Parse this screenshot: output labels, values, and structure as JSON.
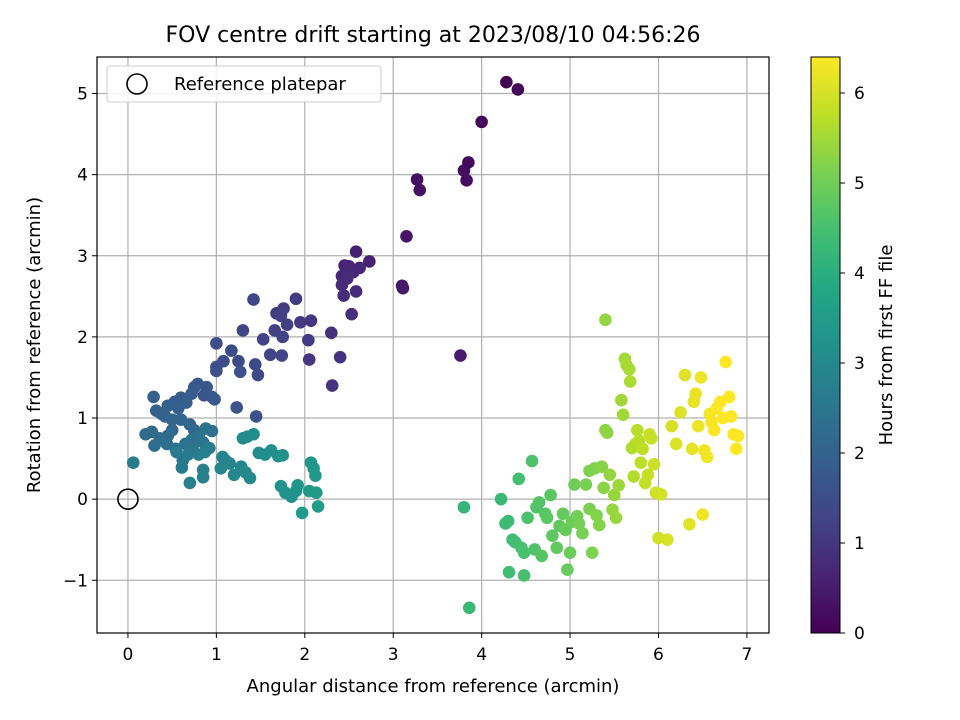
{
  "chart_data": {
    "type": "scatter",
    "title": "FOV centre drift starting at 2023/08/10 04:56:26",
    "xlabel": "Angular distance from reference (arcmin)",
    "ylabel": "Rotation from reference (arcmin)",
    "xlim": [
      -0.35,
      7.25
    ],
    "ylim": [
      -1.65,
      5.45
    ],
    "xticks": [
      0,
      1,
      2,
      3,
      4,
      5,
      6,
      7
    ],
    "yticks": [
      -1,
      0,
      1,
      2,
      3,
      4,
      5
    ],
    "ytick_labels": [
      "−1",
      "0",
      "1",
      "2",
      "3",
      "4",
      "5"
    ],
    "grid": true,
    "legend": {
      "position": "top-left",
      "label": "Reference platepar",
      "marker": "open-circle"
    },
    "reference_point": {
      "x": 0,
      "y": 0
    },
    "colorbar": {
      "label": "Hours from first FF file",
      "colormap": "viridis",
      "range": [
        0,
        6.4
      ],
      "ticks": [
        0,
        1,
        2,
        3,
        4,
        5,
        6
      ]
    },
    "series": [
      {
        "points": [
          [
            4.28,
            5.14,
            0.0
          ],
          [
            4.41,
            5.05,
            0.05
          ],
          [
            4.0,
            4.65,
            0.1
          ],
          [
            3.85,
            4.15,
            0.15
          ],
          [
            3.8,
            4.05,
            0.2
          ],
          [
            3.83,
            3.93,
            0.22
          ],
          [
            3.27,
            3.94,
            0.28
          ],
          [
            3.3,
            3.81,
            0.32
          ],
          [
            3.1,
            2.63,
            0.4
          ],
          [
            3.11,
            2.6,
            0.43
          ],
          [
            3.15,
            3.24,
            0.37
          ],
          [
            3.76,
            1.77,
            0.5
          ],
          [
            2.58,
            3.05,
            0.55
          ],
          [
            2.73,
            2.93,
            0.58
          ],
          [
            2.45,
            2.88,
            0.62
          ],
          [
            2.5,
            2.87,
            0.65
          ],
          [
            2.62,
            2.85,
            0.68
          ],
          [
            2.55,
            2.8,
            0.7
          ],
          [
            2.42,
            2.75,
            0.72
          ],
          [
            2.48,
            2.72,
            0.75
          ],
          [
            2.42,
            2.64,
            0.78
          ],
          [
            2.58,
            2.56,
            0.8
          ],
          [
            2.44,
            2.51,
            0.83
          ],
          [
            2.53,
            2.28,
            0.86
          ],
          [
            2.3,
            2.05,
            0.9
          ],
          [
            2.4,
            1.75,
            0.93
          ],
          [
            2.31,
            1.4,
            0.96
          ],
          [
            2.05,
            1.72,
            1.0
          ],
          [
            2.07,
            2.2,
            1.02
          ],
          [
            1.95,
            2.18,
            1.05
          ],
          [
            2.04,
            1.96,
            1.07
          ],
          [
            1.9,
            2.47,
            1.1
          ],
          [
            1.76,
            2.35,
            1.12
          ],
          [
            1.68,
            2.29,
            1.15
          ],
          [
            1.73,
            2.26,
            1.17
          ],
          [
            1.8,
            2.15,
            1.2
          ],
          [
            1.66,
            2.08,
            1.22
          ],
          [
            1.75,
            2.0,
            1.25
          ],
          [
            1.53,
            1.97,
            1.27
          ],
          [
            1.61,
            1.78,
            1.3
          ],
          [
            1.74,
            1.77,
            1.32
          ],
          [
            1.3,
            2.08,
            1.35
          ],
          [
            1.42,
            2.46,
            1.37
          ],
          [
            1.44,
            1.66,
            1.4
          ],
          [
            1.47,
            1.53,
            1.42
          ],
          [
            1.25,
            1.7,
            1.45
          ],
          [
            1.17,
            1.83,
            1.47
          ],
          [
            1.08,
            1.7,
            1.5
          ],
          [
            1.0,
            1.92,
            1.52
          ],
          [
            1.0,
            1.63,
            1.55
          ],
          [
            1.0,
            1.58,
            1.57
          ],
          [
            1.27,
            1.57,
            1.6
          ],
          [
            1.45,
            1.02,
            1.62
          ],
          [
            1.23,
            1.13,
            1.65
          ],
          [
            0.89,
            1.38,
            1.68
          ],
          [
            0.86,
            1.28,
            1.7
          ],
          [
            0.95,
            1.26,
            1.72
          ],
          [
            0.98,
            1.23,
            1.75
          ],
          [
            0.79,
            1.42,
            1.77
          ],
          [
            0.75,
            1.38,
            1.8
          ],
          [
            0.72,
            1.3,
            1.82
          ],
          [
            0.6,
            1.25,
            1.85
          ],
          [
            0.53,
            1.2,
            1.87
          ],
          [
            0.66,
            1.19,
            1.9
          ],
          [
            0.57,
            1.12,
            1.92
          ],
          [
            0.45,
            1.15,
            1.95
          ],
          [
            0.29,
            1.26,
            1.97
          ],
          [
            0.32,
            1.09,
            2.0
          ],
          [
            0.38,
            1.05,
            2.02
          ],
          [
            0.42,
            1.02,
            2.05
          ],
          [
            0.5,
            0.98,
            2.07
          ],
          [
            0.6,
            0.98,
            2.1
          ],
          [
            0.7,
            0.92,
            2.12
          ],
          [
            0.75,
            0.85,
            2.15
          ],
          [
            0.5,
            0.85,
            2.17
          ],
          [
            0.27,
            0.83,
            2.2
          ],
          [
            0.2,
            0.8,
            2.22
          ],
          [
            0.45,
            0.78,
            2.25
          ],
          [
            0.36,
            0.75,
            2.27
          ],
          [
            0.3,
            0.66,
            2.3
          ],
          [
            0.44,
            0.68,
            2.32
          ],
          [
            0.54,
            0.62,
            2.35
          ],
          [
            0.65,
            0.68,
            2.37
          ],
          [
            0.72,
            0.73,
            2.4
          ],
          [
            0.8,
            0.78,
            2.42
          ],
          [
            0.88,
            0.87,
            2.45
          ],
          [
            0.95,
            0.84,
            2.47
          ],
          [
            0.85,
            0.7,
            2.5
          ],
          [
            0.73,
            0.63,
            2.52
          ],
          [
            0.68,
            0.55,
            2.55
          ],
          [
            0.62,
            0.48,
            2.57
          ],
          [
            0.55,
            0.58,
            2.6
          ],
          [
            0.61,
            0.39,
            2.62
          ],
          [
            0.06,
            0.45,
            2.65
          ],
          [
            0.92,
            0.63,
            2.67
          ],
          [
            0.87,
            0.58,
            2.7
          ],
          [
            0.8,
            0.55,
            2.72
          ],
          [
            0.85,
            0.36,
            2.75
          ],
          [
            0.85,
            0.27,
            2.77
          ],
          [
            0.7,
            0.2,
            2.8
          ],
          [
            1.07,
            0.52,
            2.82
          ],
          [
            1.1,
            0.48,
            2.85
          ],
          [
            1.15,
            0.44,
            2.87
          ],
          [
            1.05,
            0.38,
            2.9
          ],
          [
            1.2,
            0.3,
            2.92
          ],
          [
            1.28,
            0.4,
            2.95
          ],
          [
            1.33,
            0.33,
            2.97
          ],
          [
            1.38,
            0.26,
            3.0
          ],
          [
            1.3,
            0.75,
            3.02
          ],
          [
            1.35,
            0.77,
            3.05
          ],
          [
            1.42,
            0.8,
            3.07
          ],
          [
            1.48,
            0.57,
            3.1
          ],
          [
            1.55,
            0.55,
            3.12
          ],
          [
            1.62,
            0.6,
            3.15
          ],
          [
            1.7,
            0.53,
            3.17
          ],
          [
            1.75,
            0.54,
            3.2
          ],
          [
            1.73,
            0.16,
            3.22
          ],
          [
            1.78,
            0.08,
            3.25
          ],
          [
            1.85,
            0.03,
            3.27
          ],
          [
            1.9,
            0.1,
            3.3
          ],
          [
            1.92,
            0.17,
            3.32
          ],
          [
            2.07,
            0.45,
            3.35
          ],
          [
            2.1,
            0.38,
            3.37
          ],
          [
            2.12,
            0.29,
            3.4
          ],
          [
            2.05,
            0.1,
            3.42
          ],
          [
            2.13,
            0.08,
            3.45
          ],
          [
            1.97,
            -0.17,
            3.47
          ],
          [
            2.15,
            -0.09,
            3.5
          ],
          [
            3.8,
            -0.1,
            4.2
          ],
          [
            3.86,
            -1.34,
            4.25
          ],
          [
            4.22,
            0.0,
            4.3
          ],
          [
            4.27,
            -0.3,
            4.35
          ],
          [
            4.3,
            -0.27,
            4.37
          ],
          [
            4.31,
            -0.9,
            4.4
          ],
          [
            4.35,
            -0.5,
            4.42
          ],
          [
            4.38,
            -0.53,
            4.45
          ],
          [
            4.42,
            0.25,
            4.47
          ],
          [
            4.45,
            -0.6,
            4.5
          ],
          [
            4.48,
            -0.94,
            4.52
          ],
          [
            4.48,
            -0.66,
            4.55
          ],
          [
            4.52,
            -0.23,
            4.57
          ],
          [
            4.57,
            0.47,
            4.6
          ],
          [
            4.6,
            -0.62,
            4.62
          ],
          [
            4.62,
            -0.1,
            4.65
          ],
          [
            4.65,
            -0.04,
            4.67
          ],
          [
            4.68,
            -0.7,
            4.7
          ],
          [
            4.72,
            -0.18,
            4.72
          ],
          [
            4.74,
            -0.23,
            4.75
          ],
          [
            4.78,
            0.05,
            4.77
          ],
          [
            4.8,
            -0.45,
            4.8
          ],
          [
            4.85,
            -0.6,
            4.82
          ],
          [
            4.88,
            -0.33,
            4.85
          ],
          [
            4.92,
            -0.18,
            4.87
          ],
          [
            4.95,
            -0.38,
            4.9
          ],
          [
            4.97,
            -0.87,
            4.92
          ],
          [
            5.0,
            -0.66,
            4.95
          ],
          [
            5.02,
            -0.28,
            4.97
          ],
          [
            5.05,
            0.18,
            5.0
          ],
          [
            5.08,
            -0.21,
            5.02
          ],
          [
            5.1,
            -0.3,
            5.05
          ],
          [
            5.14,
            -0.42,
            5.07
          ],
          [
            5.18,
            0.18,
            5.1
          ],
          [
            5.22,
            -0.12,
            5.12
          ],
          [
            5.25,
            -0.66,
            5.15
          ],
          [
            5.28,
            0.38,
            5.17
          ],
          [
            5.3,
            -0.2,
            5.2
          ],
          [
            5.33,
            -0.32,
            5.22
          ],
          [
            5.36,
            0.4,
            5.25
          ],
          [
            5.38,
            0.14,
            5.27
          ],
          [
            5.4,
            0.85,
            5.3
          ],
          [
            5.42,
            0.82,
            5.32
          ],
          [
            5.45,
            0.3,
            5.35
          ],
          [
            5.48,
            -0.13,
            5.37
          ],
          [
            5.5,
            0.05,
            5.4
          ],
          [
            5.52,
            -0.23,
            5.42
          ],
          [
            5.55,
            0.17,
            5.45
          ],
          [
            5.58,
            1.22,
            5.47
          ],
          [
            5.6,
            1.04,
            5.5
          ],
          [
            5.62,
            1.73,
            5.52
          ],
          [
            5.64,
            1.65,
            5.55
          ],
          [
            5.67,
            1.6,
            5.57
          ],
          [
            5.68,
            1.45,
            5.6
          ],
          [
            5.7,
            0.63,
            5.62
          ],
          [
            5.72,
            0.28,
            5.65
          ],
          [
            5.74,
            0.68,
            5.67
          ],
          [
            5.76,
            0.85,
            5.7
          ],
          [
            5.78,
            0.72,
            5.72
          ],
          [
            5.8,
            0.45,
            5.75
          ],
          [
            5.82,
            0.62,
            5.77
          ],
          [
            5.85,
            0.2,
            5.8
          ],
          [
            5.88,
            0.3,
            5.82
          ],
          [
            5.9,
            0.8,
            5.85
          ],
          [
            5.92,
            0.75,
            5.87
          ],
          [
            5.95,
            0.43,
            5.9
          ],
          [
            5.97,
            0.08,
            5.92
          ],
          [
            6.0,
            -0.48,
            5.95
          ],
          [
            6.03,
            0.06,
            5.97
          ],
          [
            6.1,
            -0.5,
            6.0
          ],
          [
            6.15,
            0.9,
            6.02
          ],
          [
            6.2,
            0.68,
            6.05
          ],
          [
            6.25,
            1.07,
            6.07
          ],
          [
            6.3,
            1.53,
            6.1
          ],
          [
            6.35,
            -0.31,
            6.12
          ],
          [
            6.38,
            0.62,
            6.15
          ],
          [
            6.4,
            1.2,
            6.17
          ],
          [
            6.42,
            1.3,
            6.2
          ],
          [
            6.45,
            0.9,
            6.22
          ],
          [
            6.48,
            1.5,
            6.24
          ],
          [
            6.5,
            -0.19,
            6.26
          ],
          [
            6.52,
            0.6,
            6.28
          ],
          [
            6.55,
            0.52,
            6.3
          ],
          [
            6.58,
            1.05,
            6.32
          ],
          [
            6.6,
            0.95,
            6.34
          ],
          [
            6.63,
            0.85,
            6.36
          ],
          [
            6.66,
            1.12,
            6.37
          ],
          [
            6.7,
            1.2,
            6.38
          ],
          [
            6.73,
            1.0,
            6.39
          ],
          [
            6.76,
            1.69,
            6.4
          ],
          [
            6.8,
            1.26,
            6.4
          ],
          [
            6.82,
            1.02,
            6.4
          ],
          [
            6.85,
            0.8,
            6.4
          ],
          [
            6.88,
            0.62,
            6.4
          ],
          [
            6.9,
            0.78,
            6.4
          ],
          [
            5.4,
            2.21,
            5.35
          ],
          [
            5.22,
            0.35,
            5.15
          ]
        ]
      }
    ]
  }
}
